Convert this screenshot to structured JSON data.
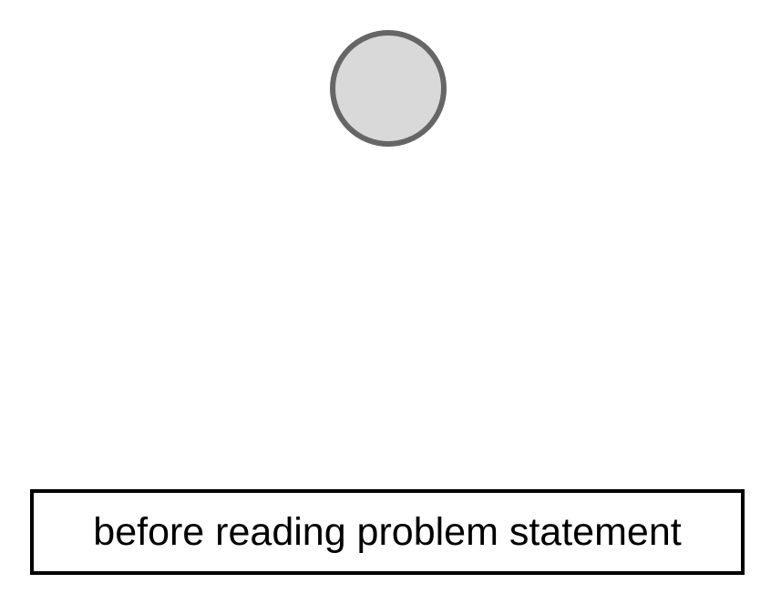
{
  "diagram": {
    "label": "before reading problem statement",
    "colors": {
      "circle_fill": "#d9d9d9",
      "circle_border": "#666666",
      "box_border": "#000000",
      "text": "#000000",
      "background": "#ffffff"
    }
  }
}
